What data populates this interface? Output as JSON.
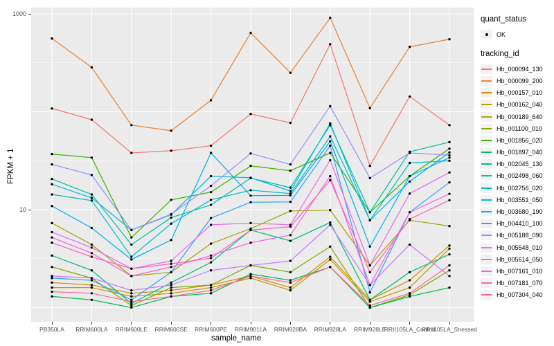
{
  "axes": {
    "y_title": "FPKM + 1",
    "x_title": "sample_name",
    "y_ticks": [
      {
        "label": "1000",
        "value": 1000
      },
      {
        "label": "10",
        "value": 10
      }
    ]
  },
  "legend": {
    "quant_status_title": "quant_status",
    "quant_status_items": [
      {
        "label": "OK",
        "symbol": "point"
      }
    ],
    "tracking_id_title": "tracking_id"
  },
  "chart_data": {
    "type": "line",
    "title": "",
    "xlabel": "sample_name",
    "ylabel": "FPKM + 1",
    "y_scale": "log10",
    "ylim": [
      0.85,
      1400
    ],
    "grid": "on",
    "legend_position": "right",
    "panel_background": "#EBEBEB",
    "gridline_color": "#FFFFFF",
    "point_color": "#000000",
    "major_gridlines": [
      1,
      10,
      100,
      1000
    ],
    "minor_gridlines": [
      3.162,
      31.62,
      316.2
    ],
    "categories": [
      "PB350LA",
      "RRIM600LA",
      "RRIM600LE",
      "RRIM600SE",
      "RRIM600PE",
      "RRIM901LA",
      "RRIM928BA",
      "RRIM928LA",
      "RRIM928LE",
      "RRII105LA_Control",
      "RRII105LA_Stressed"
    ],
    "series": [
      {
        "name": "Hb_000094_130",
        "color": "#F8766D",
        "values": [
          108,
          83,
          38,
          40,
          45,
          95,
          77,
          490,
          28,
          143,
          73
        ]
      },
      {
        "name": "Hb_000099_200",
        "color": "#EA8331",
        "values": [
          560,
          284,
          73,
          64,
          131,
          640,
          250,
          910,
          109,
          460,
          550
        ]
      },
      {
        "name": "Hb_000157_010",
        "color": "#D89000",
        "values": [
          1.8,
          1.7,
          1.4,
          1.5,
          1.7,
          2.1,
          1.6,
          3.3,
          1.2,
          1.9,
          4.3
        ]
      },
      {
        "name": "Hb_000162_040",
        "color": "#C09B00",
        "values": [
          1.6,
          1.6,
          1.3,
          1.4,
          1.6,
          2.0,
          1.5,
          3.1,
          1.15,
          1.6,
          4.0
        ]
      },
      {
        "name": "Hb_000189_640",
        "color": "#A3A500",
        "values": [
          7.3,
          4.4,
          2.1,
          2.3,
          4.5,
          6.4,
          9.7,
          9.9,
          2.7,
          7.8,
          6.8
        ]
      },
      {
        "name": "Hb_001100_010",
        "color": "#7CAE00",
        "values": [
          2.6,
          2.0,
          1.05,
          1.6,
          1.7,
          2.7,
          2.3,
          4.2,
          1.0,
          1.35,
          2.4
        ]
      },
      {
        "name": "Hb_001856_020",
        "color": "#39B600",
        "values": [
          37,
          34,
          5.2,
          12.6,
          15.1,
          28,
          25,
          38,
          9.4,
          22,
          42
        ]
      },
      {
        "name": "Hb_001897_040",
        "color": "#00BB4E",
        "values": [
          1.3,
          1.2,
          1.0,
          1.3,
          1.4,
          2.2,
          1.9,
          2.6,
          1.0,
          1.3,
          1.6
        ]
      },
      {
        "name": "Hb_002045_130",
        "color": "#00BF7D",
        "values": [
          3.4,
          2.4,
          1.1,
          1.8,
          2.9,
          6.2,
          4.8,
          7.4,
          1.2,
          2.3,
          3.5
        ]
      },
      {
        "name": "Hb_002498_060",
        "color": "#00C1A3",
        "values": [
          20.6,
          14.3,
          4.4,
          8.3,
          11.2,
          21,
          16.8,
          73,
          9.4,
          39,
          49
        ]
      },
      {
        "name": "Hb_002756_020",
        "color": "#00BFC4",
        "values": [
          14.3,
          12.4,
          3.3,
          7.2,
          12.6,
          15.8,
          14.6,
          56,
          7.8,
          30,
          31.6
        ]
      },
      {
        "name": "Hb_003551_050",
        "color": "#00BAE0",
        "values": [
          18.2,
          13.2,
          6.2,
          8.9,
          22,
          21.2,
          15.5,
          76,
          7.8,
          19.4,
          38.5
        ]
      },
      {
        "name": "Hb_003680_190",
        "color": "#00B0F6",
        "values": [
          10.9,
          6.5,
          3.1,
          4.9,
          38,
          13.9,
          14.0,
          50,
          4.2,
          22,
          34
        ]
      },
      {
        "name": "Hb_004410_100",
        "color": "#35A2FF",
        "values": [
          2.0,
          1.9,
          1.2,
          2.3,
          8.2,
          11.9,
          12.0,
          45,
          1.43,
          9.4,
          19
        ]
      },
      {
        "name": "Hb_005188_090",
        "color": "#9590FF",
        "values": [
          29,
          22.6,
          6.2,
          9.0,
          17.5,
          37.5,
          29,
          114,
          21,
          38,
          36
        ]
      },
      {
        "name": "Hb_005548_010",
        "color": "#C77CFF",
        "values": [
          2.1,
          2.0,
          1.5,
          1.7,
          2.4,
          2.7,
          3.0,
          7.0,
          1.7,
          4.4,
          2.1
        ]
      },
      {
        "name": "Hb_005614_050",
        "color": "#E76BF3",
        "values": [
          5.9,
          4.1,
          2.5,
          3.0,
          7.0,
          7.3,
          7.0,
          32,
          2.7,
          14.6,
          24
        ]
      },
      {
        "name": "Hb_007161_010",
        "color": "#FA62DB",
        "values": [
          5.2,
          3.6,
          2.1,
          2.6,
          3.4,
          4.6,
          5.5,
          22,
          1.7,
          9.4,
          14.5
        ]
      },
      {
        "name": "Hb_007181_070",
        "color": "#FF62BC",
        "values": [
          4.6,
          3.3,
          2.5,
          2.8,
          3.2,
          6.2,
          6.7,
          20,
          2.3,
          8.0,
          12.5
        ]
      },
      {
        "name": "Hb_007304_040",
        "color": "#FF6A98",
        "values": [
          1.45,
          1.4,
          1.15,
          1.3,
          1.5,
          2.1,
          1.8,
          2.6,
          1.05,
          1.4,
          2.7
        ]
      }
    ]
  }
}
